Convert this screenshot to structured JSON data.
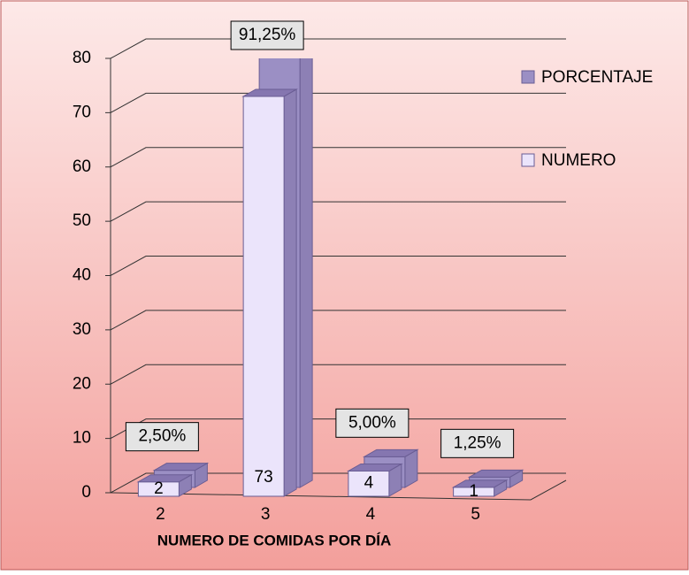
{
  "chart_data": {
    "type": "bar3d",
    "x_label": "NUMERO  DE COMIDAS POR DÍA",
    "categories": [
      "2",
      "3",
      "4",
      "5"
    ],
    "series": [
      {
        "name": "PORCENTAJE",
        "color": "#9b8fc4",
        "values": [
          2.5,
          91.25,
          5,
          1.25
        ],
        "value_labels": [
          "2,50%",
          "91,25%",
          "5,00%",
          "1,25%"
        ]
      },
      {
        "name": "NUMERO",
        "color": "#ebe4fb",
        "values": [
          2,
          73,
          4,
          1
        ]
      }
    ],
    "ylim": [
      0,
      80
    ],
    "yticks": [
      0,
      10,
      20,
      30,
      40,
      50,
      60,
      70,
      80
    ],
    "grid": true
  }
}
